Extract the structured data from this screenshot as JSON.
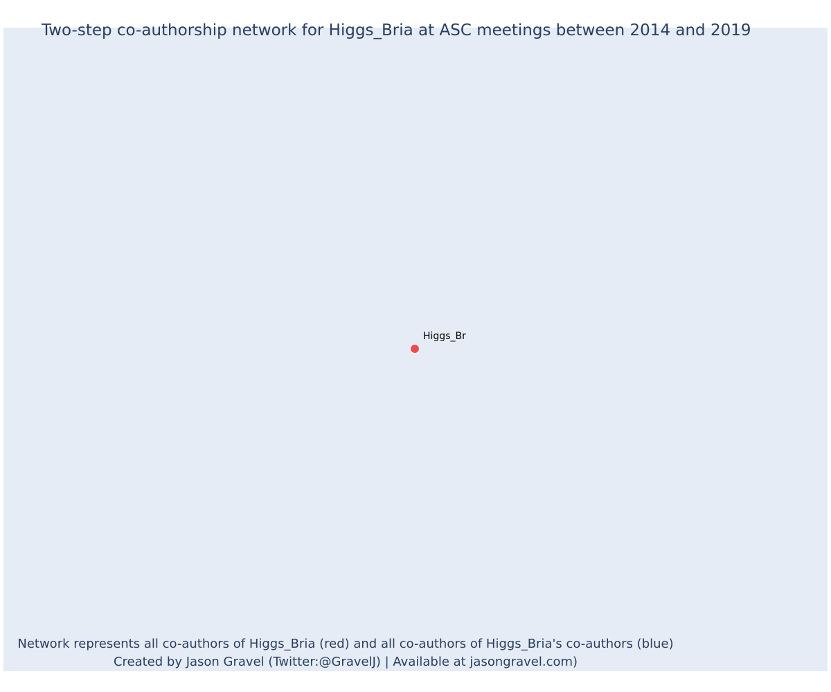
{
  "title": "Two-step co-authorship network for Higgs_Bria at ASC meetings between 2014 and 2019",
  "colors": {
    "background": "#e5ecf6",
    "focal_node": "#ef4a4f",
    "text": "#2a3f5f"
  },
  "network": {
    "nodes": [
      {
        "label": "Higgs_Br",
        "role": "focal",
        "color": "#ef4a4f"
      }
    ],
    "edges": []
  },
  "caption": {
    "line1": "Network represents all co-authors of Higgs_Bria (red) and all co-authors of Higgs_Bria's co-authors (blue)",
    "line2": "Created by Jason Gravel (Twitter:@GravelJ) | Available at jasongravel.com)"
  }
}
